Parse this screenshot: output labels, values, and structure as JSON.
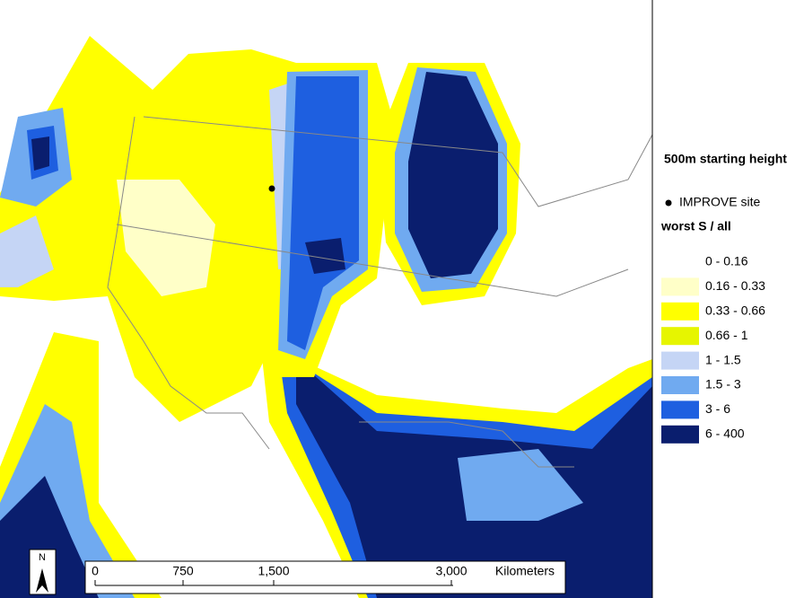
{
  "legend": {
    "title": "500m starting height",
    "site_label": "IMPROVE site",
    "subtitle": "worst S / all",
    "classes": [
      {
        "label": "0 - 0.16",
        "color": "#ffffff"
      },
      {
        "label": "0.16 - 0.33",
        "color": "#ffffc8"
      },
      {
        "label": "0.33 - 0.66",
        "color": "#ffff00"
      },
      {
        "label": "0.66 - 1",
        "color": "#e6f500"
      },
      {
        "label": "1 - 1.5",
        "color": "#c5d5f5"
      },
      {
        "label": "1.5 - 3",
        "color": "#70aaf0"
      },
      {
        "label": "3 - 6",
        "color": "#1e5fe0"
      },
      {
        "label": "6 - 400",
        "color": "#0a1e6e"
      }
    ]
  },
  "scale_bar": {
    "labels": [
      "0",
      "750",
      "1,500",
      "3,000"
    ],
    "unit": "Kilometers"
  },
  "north_arrow": {
    "label": "N"
  }
}
